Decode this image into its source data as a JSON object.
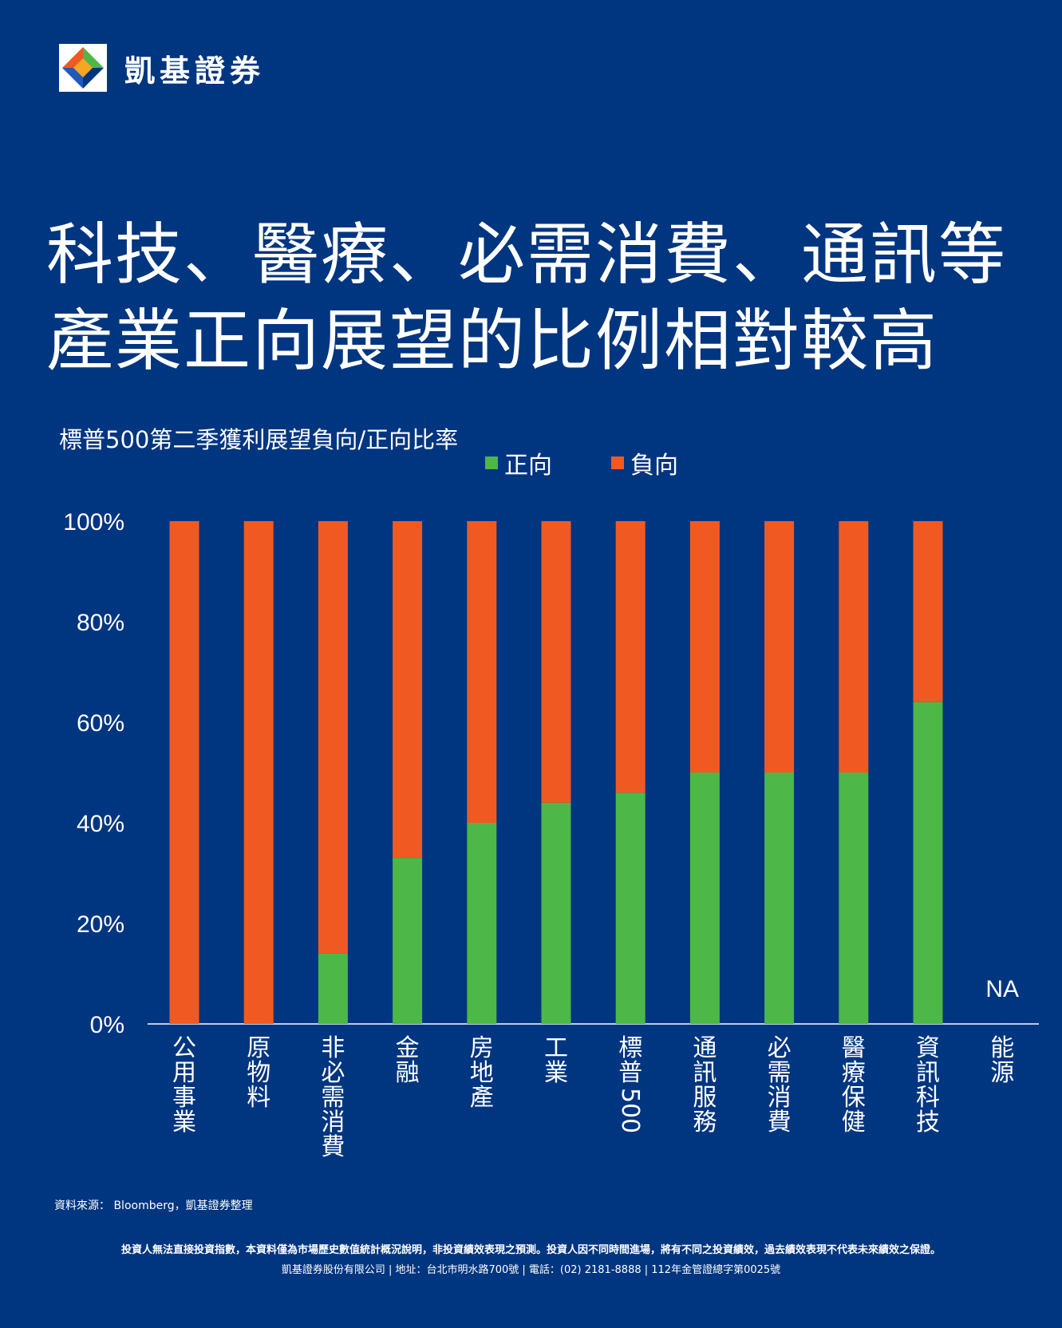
{
  "brand": {
    "name": "凱基證券",
    "colors": {
      "background": "#003580",
      "orange": "#F05A22",
      "green": "#4DB748",
      "blue": "#1E5BB8",
      "navy": "#003580"
    }
  },
  "headline": {
    "line1": "科技、醫療、必需消費、通訊等",
    "line2": "產業正向展望的比例相對較高"
  },
  "chart_data": {
    "type": "bar",
    "stacked": true,
    "title": "標普500第二季獲利展望負向/正向比率",
    "categories": [
      "公用事業",
      "原物料",
      "非必需消費",
      "金融",
      "房地產",
      "工業",
      "標普500",
      "通訊服務",
      "必需消費",
      "醫療保健",
      "資訊科技",
      "能源"
    ],
    "series": [
      {
        "name": "正向",
        "color": "#4DB748",
        "values": [
          0,
          0,
          14,
          33,
          40,
          44,
          46,
          50,
          50,
          50,
          64,
          null
        ]
      },
      {
        "name": "負向",
        "color": "#F05A22",
        "values": [
          100,
          100,
          86,
          67,
          60,
          56,
          54,
          50,
          50,
          50,
          36,
          null
        ]
      }
    ],
    "ylim": [
      0,
      100
    ],
    "yticks": [
      "0%",
      "20%",
      "40%",
      "60%",
      "80%",
      "100%"
    ],
    "legend_position": "top",
    "grid": false,
    "na_label": "NA"
  },
  "footer": {
    "source": "資料來源： Bloomberg，凱基證券整理",
    "disclaimer": "投資人無法直接投資指數，本資料僅為市場歷史數值統計概況說明，非投資績效表現之預測。投資人因不同時間進場，將有不同之投資績效，過去績效表現不代表未來績效之保證。",
    "company_info": "凱基證券股份有限公司 | 地址：台北市明水路700號 | 電話：(02) 2181-8888 | 112年金管證總字第0025號"
  }
}
